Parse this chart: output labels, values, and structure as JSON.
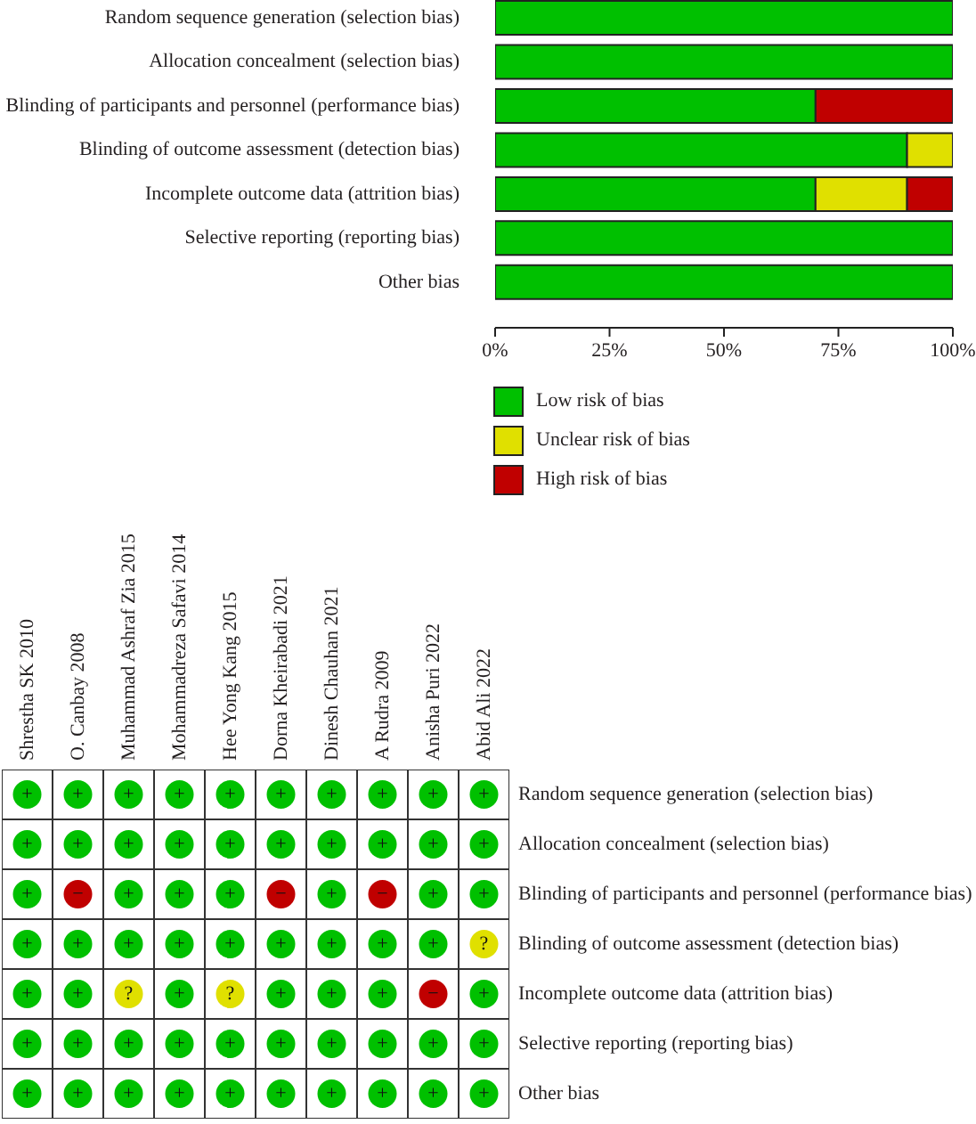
{
  "chart_data": [
    {
      "type": "bar",
      "orientation": "horizontal",
      "stacked": true,
      "categories": [
        "Random sequence generation (selection bias)",
        "Allocation concealment (selection bias)",
        "Blinding of participants and personnel (performance bias)",
        "Blinding of outcome assessment (detection bias)",
        "Incomplete outcome data (attrition bias)",
        "Selective reporting (reporting bias)",
        "Other bias"
      ],
      "series": [
        {
          "name": "Low risk of bias",
          "color": "#00c000",
          "values": [
            100,
            100,
            70,
            90,
            70,
            100,
            100
          ]
        },
        {
          "name": "Unclear risk of bias",
          "color": "#e0e000",
          "values": [
            0,
            0,
            0,
            10,
            20,
            0,
            0
          ]
        },
        {
          "name": "High risk of bias",
          "color": "#c00000",
          "values": [
            0,
            0,
            30,
            0,
            10,
            0,
            0
          ]
        }
      ],
      "xlim": [
        0,
        100
      ],
      "xticks": [
        {
          "value": 0,
          "label": "0%"
        },
        {
          "value": 25,
          "label": "25%"
        },
        {
          "value": 50,
          "label": "50%"
        },
        {
          "value": 75,
          "label": "75%"
        },
        {
          "value": 100,
          "label": "100%"
        }
      ],
      "legend": "bottom left"
    },
    {
      "type": "heatmap",
      "categories": [
        "Shrestha SK 2010",
        "O. Canbay 2008",
        "Muhammad Ashraf Zia 2015",
        "Mohammadreza Safavi 2014",
        "Hee Yong Kang 2015",
        "Dorna Kheirabadi 2021",
        "Dinesh Chauhan 2021",
        "A Rudra 2009",
        "Anisha Puri 2022",
        "Abid Ali 2022"
      ],
      "y_categories": [
        "Random sequence generation (selection bias)",
        "Allocation concealment (selection bias)",
        "Blinding of participants and personnel (performance bias)",
        "Blinding of outcome assessment (detection bias)",
        "Incomplete outcome data (attrition bias)",
        "Selective reporting (reporting bias)",
        "Other bias"
      ],
      "cells": [
        [
          "+",
          "+",
          "+",
          "+",
          "+",
          "+",
          "+",
          "+",
          "+",
          "+"
        ],
        [
          "+",
          "+",
          "+",
          "+",
          "+",
          "+",
          "+",
          "+",
          "+",
          "+"
        ],
        [
          "+",
          "−",
          "+",
          "+",
          "+",
          "−",
          "+",
          "−",
          "+",
          "+"
        ],
        [
          "+",
          "+",
          "+",
          "+",
          "+",
          "+",
          "+",
          "+",
          "+",
          "?"
        ],
        [
          "+",
          "+",
          "?",
          "+",
          "?",
          "+",
          "+",
          "+",
          "−",
          "+"
        ],
        [
          "+",
          "+",
          "+",
          "+",
          "+",
          "+",
          "+",
          "+",
          "+",
          "+"
        ],
        [
          "+",
          "+",
          "+",
          "+",
          "+",
          "+",
          "+",
          "+",
          "+",
          "+"
        ]
      ],
      "colors": [
        [
          "#00c000",
          "#00c000",
          "#00c000",
          "#00c000",
          "#00c000",
          "#00c000",
          "#00c000",
          "#00c000",
          "#00c000",
          "#00c000"
        ],
        [
          "#00c000",
          "#00c000",
          "#00c000",
          "#00c000",
          "#00c000",
          "#00c000",
          "#00c000",
          "#00c000",
          "#00c000",
          "#00c000"
        ],
        [
          "#00c000",
          "#c00000",
          "#00c000",
          "#00c000",
          "#00c000",
          "#c00000",
          "#00c000",
          "#c00000",
          "#00c000",
          "#00c000"
        ],
        [
          "#00c000",
          "#00c000",
          "#00c000",
          "#00c000",
          "#00c000",
          "#00c000",
          "#00c000",
          "#00c000",
          "#00c000",
          "#e0e000"
        ],
        [
          "#00c000",
          "#00c000",
          "#e0e000",
          "#00c000",
          "#e0e000",
          "#00c000",
          "#00c000",
          "#00c000",
          "#c00000",
          "#00c000"
        ],
        [
          "#00c000",
          "#00c000",
          "#00c000",
          "#00c000",
          "#00c000",
          "#00c000",
          "#00c000",
          "#00c000",
          "#00c000",
          "#00c000"
        ],
        [
          "#00c000",
          "#00c000",
          "#00c000",
          "#00c000",
          "#00c000",
          "#00c000",
          "#00c000",
          "#00c000",
          "#00c000",
          "#00c000"
        ]
      ]
    }
  ]
}
